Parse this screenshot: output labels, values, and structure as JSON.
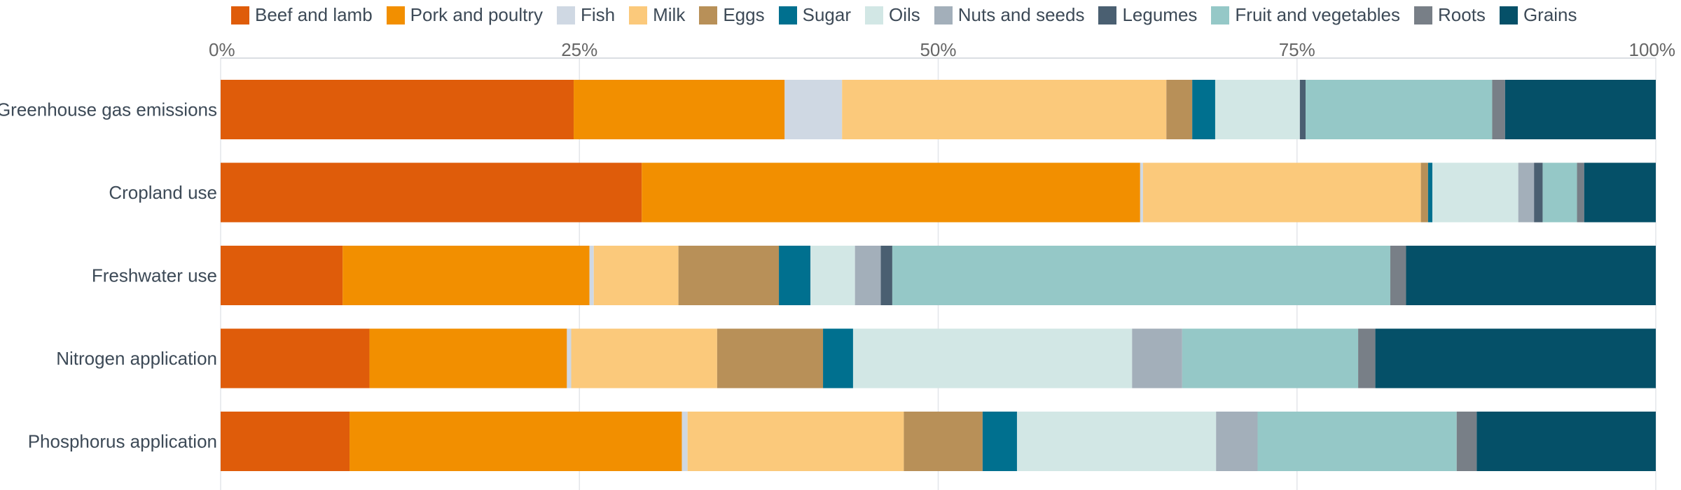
{
  "chart_data": {
    "type": "bar",
    "orientation": "horizontal",
    "stacked": true,
    "normalized": true,
    "xlim": [
      0,
      100
    ],
    "x_ticks": [
      "0%",
      "25%",
      "50%",
      "75%",
      "100%"
    ],
    "x_axis_position": "top",
    "grid": true,
    "legend_position": "top",
    "categories": [
      "Greenhouse gas emissions",
      "Cropland use",
      "Freshwater use",
      "Nitrogen application",
      "Phosphorus application"
    ],
    "series": [
      {
        "name": "Beef and lamb",
        "color": "#df5c0a",
        "values": [
          24.6,
          29.4,
          8.5,
          10.4,
          9.0
        ]
      },
      {
        "name": "Pork and poultry",
        "color": "#f28f00",
        "values": [
          14.7,
          34.8,
          17.2,
          13.8,
          23.2
        ]
      },
      {
        "name": "Fish",
        "color": "#cfd8e3",
        "values": [
          4.0,
          0.2,
          0.3,
          0.3,
          0.4
        ]
      },
      {
        "name": "Milk",
        "color": "#fbc97b",
        "values": [
          22.6,
          19.4,
          5.9,
          10.2,
          15.1
        ]
      },
      {
        "name": "Eggs",
        "color": "#b89058",
        "values": [
          1.8,
          0.5,
          7.0,
          7.4,
          5.5
        ]
      },
      {
        "name": "Sugar",
        "color": "#00708f",
        "values": [
          1.6,
          0.3,
          2.2,
          2.1,
          2.4
        ]
      },
      {
        "name": "Oils",
        "color": "#d2e7e5",
        "values": [
          5.9,
          6.0,
          3.1,
          19.5,
          13.9
        ]
      },
      {
        "name": "Nuts and seeds",
        "color": "#a3afba",
        "values": [
          0.0,
          1.1,
          1.8,
          3.5,
          2.9
        ]
      },
      {
        "name": "Legumes",
        "color": "#4a5f71",
        "values": [
          0.4,
          0.6,
          0.8,
          0.0,
          0.0
        ]
      },
      {
        "name": "Fruit and vegetables",
        "color": "#95c8c7",
        "values": [
          13.0,
          2.4,
          34.7,
          12.3,
          13.9
        ]
      },
      {
        "name": "Roots",
        "color": "#787f87",
        "values": [
          0.9,
          0.5,
          1.1,
          1.2,
          1.4
        ]
      },
      {
        "name": "Grains",
        "color": "#055068",
        "values": [
          10.5,
          5.0,
          17.4,
          19.6,
          12.5
        ]
      }
    ]
  }
}
